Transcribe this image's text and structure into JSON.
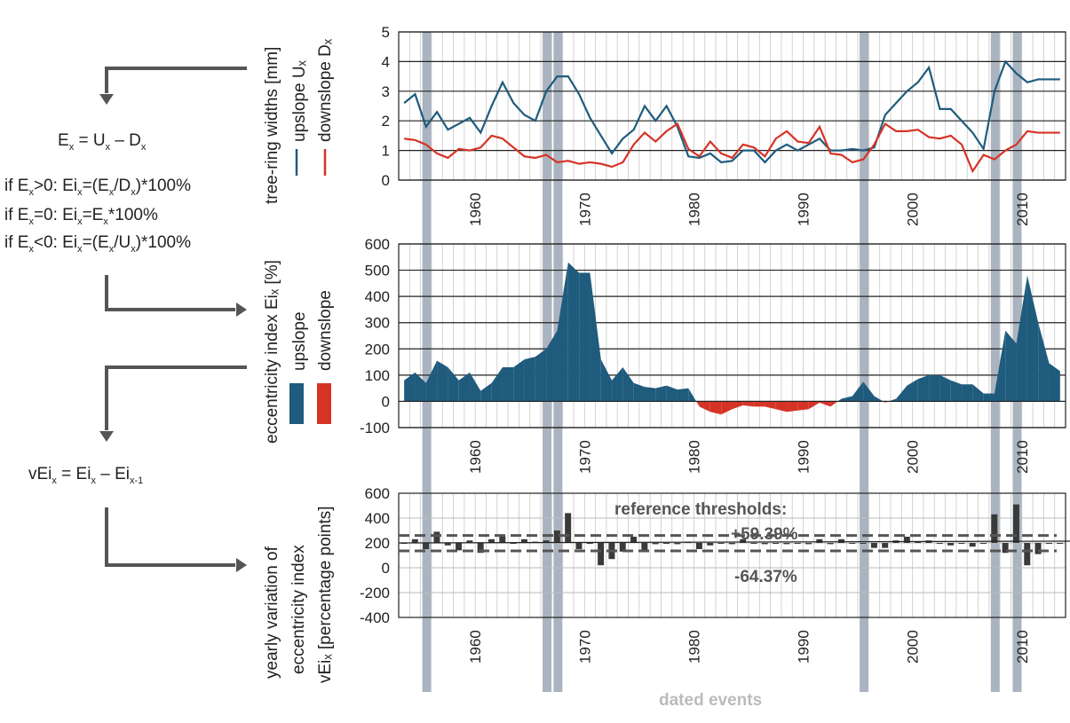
{
  "colors": {
    "upslope": "#1f5b7d",
    "downslope": "#d63327",
    "event_band": "#aab4c0",
    "bars": "#3a3a3a",
    "threshold_line": "#555555",
    "threshold_text": "#555555",
    "events_text": "#bbbbbb",
    "arrow": "#555555"
  },
  "formulas": {
    "ex": "Eₓ = Uₓ – Dₓ",
    "cond1": "if Eₓ>0: Eiₓ=(Eₓ/Dₓ)*100%",
    "cond2": "if Eₓ=0: Eiₓ=Eₓ*100%",
    "cond3": "if Eₓ<0: Eiₓ=(Eₓ/Uₓ)*100%",
    "vei": "vEiₓ = Eiₓ – Eiₓ₋₁"
  },
  "labels": {
    "panel1_ylabel": "tree-ring widths [mm]",
    "panel1_legend_up": "upslope Uₓ",
    "panel1_legend_down": "downslope Dₓ",
    "panel2_ylabel": "eccentricity index Eiₓ [%]",
    "panel2_legend_up": "upslope",
    "panel2_legend_down": "downslope",
    "panel3_ylabel_1": "yearly variation of",
    "panel3_ylabel_2": "eccentricity index",
    "panel3_ylabel_3": "vEiₓ [percentage points]",
    "thresholds_title": "reference thresholds:",
    "threshold_pos": "+59.39%",
    "threshold_neg": "-64.37%",
    "dated_events": "dated events"
  },
  "chart_data": [
    {
      "type": "line",
      "x_range": [
        1953,
        2013
      ],
      "x_ticks": [
        1960,
        1970,
        1980,
        1990,
        2000,
        2010
      ],
      "ylim": [
        0,
        5
      ],
      "y_ticks": [
        0,
        1,
        2,
        3,
        4,
        5
      ],
      "dated_events": [
        1955,
        1966,
        1967,
        1995,
        2007,
        2009
      ],
      "series": [
        {
          "name": "upslope Uₓ",
          "x": [
            1953,
            1954,
            1955,
            1956,
            1957,
            1958,
            1959,
            1960,
            1961,
            1962,
            1963,
            1964,
            1965,
            1966,
            1967,
            1968,
            1969,
            1970,
            1971,
            1972,
            1973,
            1974,
            1975,
            1976,
            1977,
            1978,
            1979,
            1980,
            1981,
            1982,
            1983,
            1984,
            1985,
            1986,
            1987,
            1988,
            1989,
            1990,
            1991,
            1992,
            1993,
            1994,
            1995,
            1996,
            1997,
            1998,
            1999,
            2000,
            2001,
            2002,
            2003,
            2004,
            2005,
            2006,
            2007,
            2008,
            2009,
            2010,
            2011,
            2012,
            2013
          ],
          "values": [
            2.6,
            2.9,
            1.8,
            2.3,
            1.7,
            1.9,
            2.1,
            1.6,
            2.5,
            3.3,
            2.6,
            2.2,
            2.0,
            3.0,
            3.5,
            3.5,
            2.9,
            2.1,
            1.5,
            0.9,
            1.4,
            1.7,
            2.5,
            2.0,
            2.5,
            1.8,
            0.8,
            0.75,
            0.9,
            0.6,
            0.65,
            1.0,
            1.0,
            0.6,
            1.0,
            1.2,
            1.0,
            1.2,
            1.4,
            1.0,
            1.0,
            1.05,
            1.0,
            1.1,
            2.2,
            2.6,
            3.0,
            3.3,
            3.8,
            2.4,
            2.4,
            2.0,
            1.6,
            1.05,
            3.0,
            4.0,
            3.6,
            3.3,
            3.4,
            3.4,
            3.4
          ]
        },
        {
          "name": "downslope Dₓ",
          "x": [
            1953,
            1954,
            1955,
            1956,
            1957,
            1958,
            1959,
            1960,
            1961,
            1962,
            1963,
            1964,
            1965,
            1966,
            1967,
            1968,
            1969,
            1970,
            1971,
            1972,
            1973,
            1974,
            1975,
            1976,
            1977,
            1978,
            1979,
            1980,
            1981,
            1982,
            1983,
            1984,
            1985,
            1986,
            1987,
            1988,
            1989,
            1990,
            1991,
            1992,
            1993,
            1994,
            1995,
            1996,
            1997,
            1998,
            1999,
            2000,
            2001,
            2002,
            2003,
            2004,
            2005,
            2006,
            2007,
            2008,
            2009,
            2010,
            2011,
            2012,
            2013
          ],
          "values": [
            1.4,
            1.35,
            1.2,
            0.9,
            0.75,
            1.05,
            1.0,
            1.1,
            1.5,
            1.4,
            1.1,
            0.8,
            0.75,
            0.85,
            0.6,
            0.65,
            0.55,
            0.6,
            0.55,
            0.45,
            0.6,
            1.2,
            1.6,
            1.3,
            1.65,
            1.9,
            1.05,
            0.8,
            1.3,
            0.9,
            0.75,
            1.2,
            1.1,
            0.8,
            1.4,
            1.65,
            1.3,
            1.25,
            1.8,
            0.9,
            0.85,
            0.6,
            0.7,
            1.2,
            1.9,
            1.65,
            1.65,
            1.7,
            1.45,
            1.4,
            1.5,
            1.2,
            0.3,
            0.85,
            0.7,
            1.0,
            1.2,
            1.65,
            1.6,
            1.6,
            1.6
          ]
        }
      ]
    },
    {
      "type": "area",
      "x_range": [
        1953,
        2013
      ],
      "x_ticks": [
        1960,
        1970,
        1980,
        1990,
        2000,
        2010
      ],
      "ylim": [
        -100,
        600
      ],
      "y_ticks": [
        -100,
        0,
        100,
        200,
        300,
        400,
        500,
        600
      ],
      "dated_events": [
        1955,
        1966,
        1967,
        1995,
        2007,
        2009
      ],
      "series": [
        {
          "name": "Eiₓ",
          "x": [
            1953,
            1954,
            1955,
            1956,
            1957,
            1958,
            1959,
            1960,
            1961,
            1962,
            1963,
            1964,
            1965,
            1966,
            1967,
            1968,
            1969,
            1970,
            1971,
            1972,
            1973,
            1974,
            1975,
            1976,
            1977,
            1978,
            1979,
            1980,
            1981,
            1982,
            1983,
            1984,
            1985,
            1986,
            1987,
            1988,
            1989,
            1990,
            1991,
            1992,
            1993,
            1994,
            1995,
            1996,
            1997,
            1998,
            1999,
            2000,
            2001,
            2002,
            2003,
            2004,
            2005,
            2006,
            2007,
            2008,
            2009,
            2010,
            2011,
            2012,
            2013
          ],
          "values": [
            80,
            110,
            70,
            155,
            130,
            80,
            110,
            40,
            70,
            130,
            130,
            160,
            170,
            200,
            270,
            530,
            490,
            490,
            160,
            80,
            130,
            70,
            55,
            50,
            60,
            45,
            50,
            -20,
            -40,
            -50,
            -30,
            -15,
            -20,
            -20,
            -30,
            -40,
            -35,
            -30,
            -5,
            -20,
            10,
            20,
            75,
            20,
            -5,
            10,
            60,
            85,
            100,
            100,
            80,
            65,
            65,
            30,
            30,
            270,
            220,
            480,
            300,
            145,
            115
          ]
        }
      ]
    },
    {
      "type": "bar",
      "x_range": [
        1953,
        2013
      ],
      "x_ticks": [
        1960,
        1970,
        1980,
        1990,
        2000,
        2010
      ],
      "ylim": [
        -400,
        600
      ],
      "y_tick_values": [
        -400,
        -200,
        0,
        200,
        400,
        600
      ],
      "y_ticks": [
        -400,
        -200,
        0,
        200,
        400,
        600
      ],
      "dated_events": [
        1955,
        1966,
        1967,
        1995,
        2007,
        2009
      ],
      "thresholds": [
        259.39,
        135.63
      ],
      "series": [
        {
          "name": "vEiₓ",
          "x": [
            1953,
            1954,
            1955,
            1956,
            1957,
            1958,
            1959,
            1960,
            1961,
            1962,
            1963,
            1964,
            1965,
            1966,
            1967,
            1968,
            1969,
            1970,
            1971,
            1972,
            1973,
            1974,
            1975,
            1976,
            1977,
            1978,
            1979,
            1980,
            1981,
            1982,
            1983,
            1984,
            1985,
            1986,
            1987,
            1988,
            1989,
            1990,
            1991,
            1992,
            1993,
            1994,
            1995,
            1996,
            1997,
            1998,
            1999,
            2000,
            2001,
            2002,
            2003,
            2004,
            2005,
            2006,
            2007,
            2008,
            2009,
            2010,
            2011,
            2012,
            2013
          ],
          "values": [
            200,
            230,
            150,
            290,
            180,
            140,
            220,
            120,
            230,
            250,
            200,
            230,
            210,
            220,
            300,
            440,
            150,
            200,
            20,
            70,
            130,
            250,
            130,
            190,
            200,
            190,
            210,
            150,
            180,
            200,
            190,
            230,
            200,
            190,
            200,
            190,
            200,
            190,
            230,
            190,
            230,
            200,
            200,
            160,
            160,
            220,
            250,
            210,
            220,
            200,
            180,
            200,
            170,
            200,
            430,
            120,
            510,
            20,
            110,
            200,
            200
          ]
        }
      ]
    }
  ]
}
